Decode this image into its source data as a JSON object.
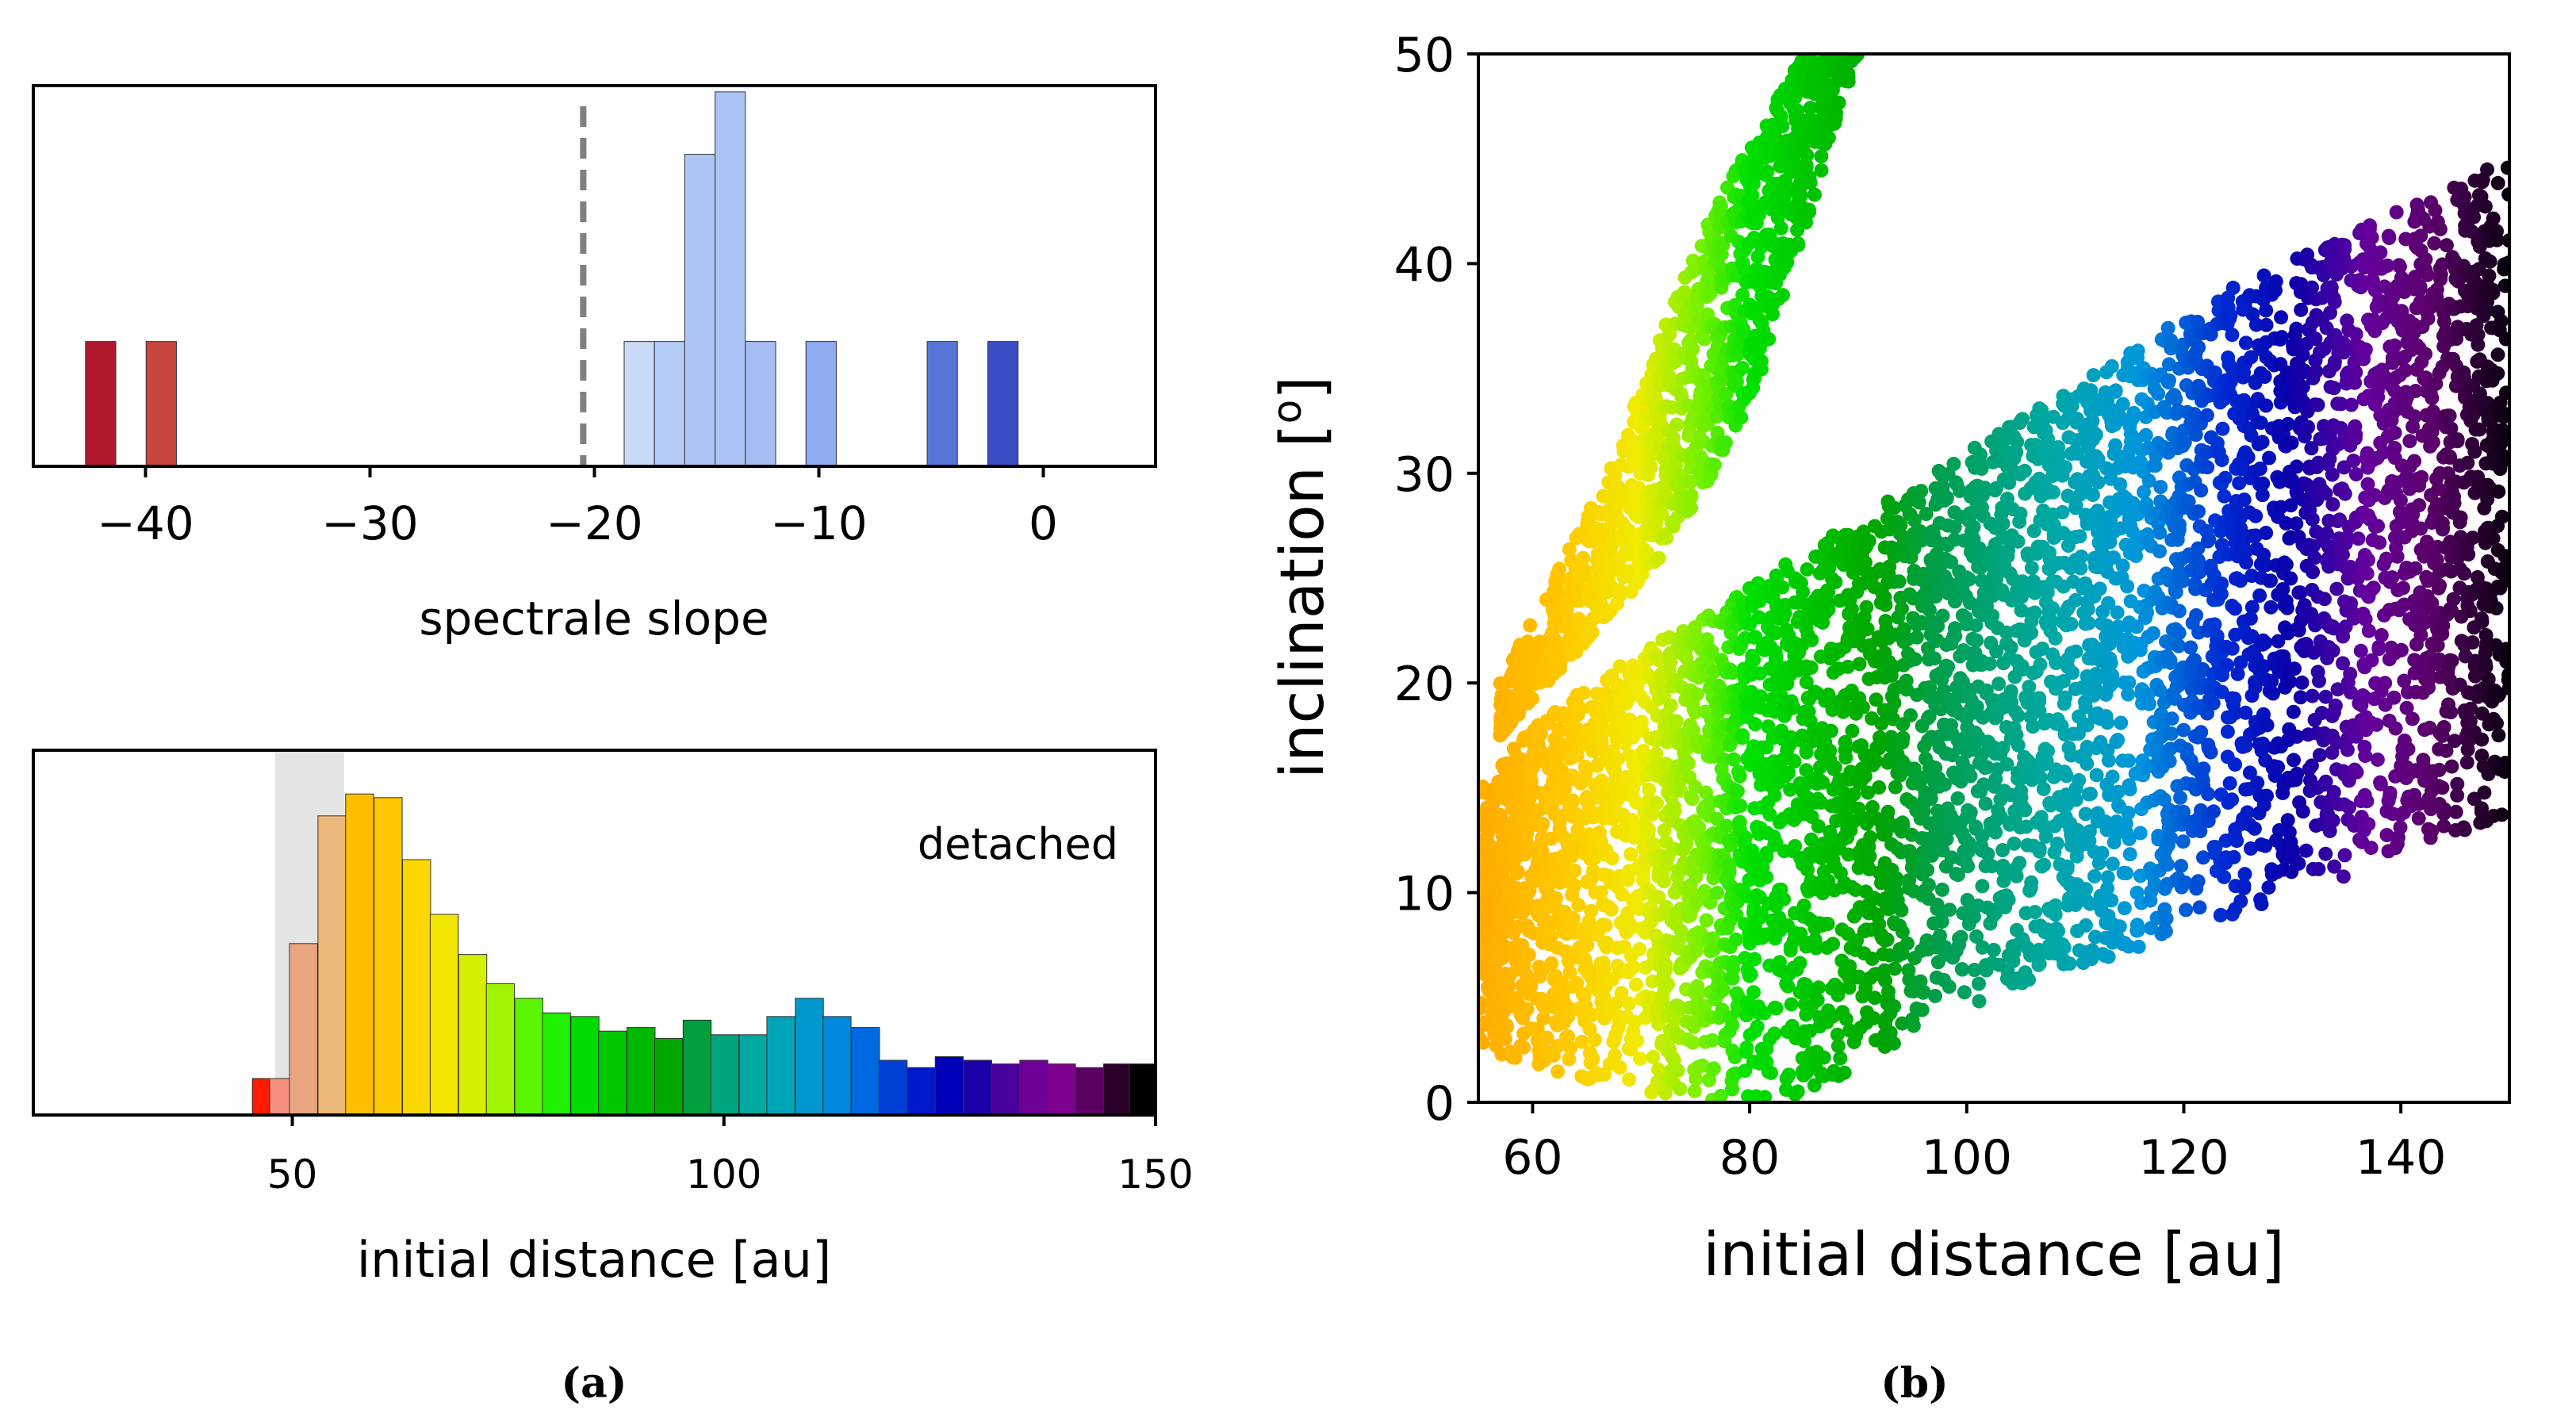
{
  "figure_captions": {
    "a": "(a)",
    "b": "(b)"
  },
  "chart_data": [
    {
      "id": "slope_hist",
      "type": "bar",
      "title": "",
      "xlabel": "spectrale slope",
      "ylabel": "",
      "xlim": [
        -45,
        5
      ],
      "ylim": [
        0,
        6.1
      ],
      "xticks": [
        -40,
        -30,
        -20,
        -10,
        0
      ],
      "xtick_labels": [
        "−40",
        "−30",
        "−20",
        "−10",
        "0"
      ],
      "reference_line": {
        "x": -20.5,
        "style": "dashed",
        "color": "#808080"
      },
      "bin_width": 1.35,
      "bars": [
        {
          "x": -42.0,
          "value": 2,
          "color": "#b2182b"
        },
        {
          "x": -39.3,
          "value": 2,
          "color": "#c94540"
        },
        {
          "x": -18.0,
          "value": 2,
          "color": "#c8d8f6"
        },
        {
          "x": -16.65,
          "value": 2,
          "color": "#b4cbf7"
        },
        {
          "x": -15.3,
          "value": 5,
          "color": "#aec6f6"
        },
        {
          "x": -13.95,
          "value": 6,
          "color": "#abc3f5"
        },
        {
          "x": -12.6,
          "value": 2,
          "color": "#a4bdf3"
        },
        {
          "x": -9.9,
          "value": 2,
          "color": "#8fabf0"
        },
        {
          "x": -4.5,
          "value": 2,
          "color": "#5876d8"
        },
        {
          "x": -1.8,
          "value": 2,
          "color": "#3a4fc4"
        }
      ]
    },
    {
      "id": "distance_hist",
      "type": "bar",
      "title": "",
      "xlabel": "initial distance [au]",
      "ylabel": "",
      "annotation": "detached",
      "xlim": [
        20,
        150
      ],
      "ylim": [
        0,
        1.0
      ],
      "xticks": [
        50,
        100,
        150
      ],
      "xtick_labels": [
        "50",
        "100",
        "150"
      ],
      "shaded_band": {
        "x0": 48,
        "x1": 56,
        "color": "#d9d9d9"
      },
      "bin_width": 3.25,
      "bars": [
        {
          "x": 47.0,
          "value": 0.1,
          "color": "#ff1a00"
        },
        {
          "x": 49.0,
          "value": 0.1,
          "color": "#f48e7e"
        },
        {
          "x": 51.3,
          "value": 0.47,
          "color": "#e8a580"
        },
        {
          "x": 54.6,
          "value": 0.82,
          "color": "#ecb87a"
        },
        {
          "x": 57.8,
          "value": 0.88,
          "color": "#ffbf00"
        },
        {
          "x": 61.1,
          "value": 0.87,
          "color": "#ffc800"
        },
        {
          "x": 64.4,
          "value": 0.7,
          "color": "#ffd700"
        },
        {
          "x": 67.6,
          "value": 0.55,
          "color": "#f2e600"
        },
        {
          "x": 70.9,
          "value": 0.44,
          "color": "#d4f000"
        },
        {
          "x": 74.1,
          "value": 0.36,
          "color": "#9ff500"
        },
        {
          "x": 77.4,
          "value": 0.32,
          "color": "#5cf500"
        },
        {
          "x": 80.6,
          "value": 0.28,
          "color": "#1ef000"
        },
        {
          "x": 83.9,
          "value": 0.27,
          "color": "#00dc00"
        },
        {
          "x": 87.1,
          "value": 0.23,
          "color": "#00c800"
        },
        {
          "x": 90.4,
          "value": 0.24,
          "color": "#00b800"
        },
        {
          "x": 93.6,
          "value": 0.21,
          "color": "#00a800"
        },
        {
          "x": 96.9,
          "value": 0.26,
          "color": "#009f3c"
        },
        {
          "x": 100.1,
          "value": 0.22,
          "color": "#00a47a"
        },
        {
          "x": 103.4,
          "value": 0.22,
          "color": "#00a8a0"
        },
        {
          "x": 106.6,
          "value": 0.27,
          "color": "#00a6b8"
        },
        {
          "x": 109.9,
          "value": 0.32,
          "color": "#0098cc"
        },
        {
          "x": 113.1,
          "value": 0.27,
          "color": "#0088dc"
        },
        {
          "x": 116.4,
          "value": 0.24,
          "color": "#0068e0"
        },
        {
          "x": 119.6,
          "value": 0.15,
          "color": "#0040d6"
        },
        {
          "x": 122.9,
          "value": 0.13,
          "color": "#0018cc"
        },
        {
          "x": 126.1,
          "value": 0.16,
          "color": "#0000b8"
        },
        {
          "x": 129.4,
          "value": 0.15,
          "color": "#1a00a8"
        },
        {
          "x": 132.6,
          "value": 0.14,
          "color": "#4a009c"
        },
        {
          "x": 135.9,
          "value": 0.15,
          "color": "#6c0098"
        },
        {
          "x": 139.1,
          "value": 0.14,
          "color": "#7d0090"
        },
        {
          "x": 142.4,
          "value": 0.13,
          "color": "#5a0062"
        },
        {
          "x": 145.6,
          "value": 0.14,
          "color": "#2a0028"
        },
        {
          "x": 148.6,
          "value": 0.14,
          "color": "#000000"
        }
      ]
    },
    {
      "id": "inclination_scatter",
      "type": "scatter",
      "title": "",
      "xlabel": "initial distance [au]",
      "ylabel": "inclination [o]",
      "ylabel_main": "inclination [",
      "ylabel_sup": "o",
      "ylabel_end": "]",
      "xlim": [
        55,
        150
      ],
      "ylim": [
        0,
        50
      ],
      "xticks": [
        60,
        80,
        100,
        120,
        140
      ],
      "yticks": [
        0,
        10,
        20,
        30,
        40,
        50
      ],
      "xtick_labels": [
        "60",
        "80",
        "100",
        "120",
        "140"
      ],
      "ytick_labels": [
        "0",
        "10",
        "20",
        "30",
        "40",
        "50"
      ],
      "color_by": "initial distance",
      "colormap": "gist_rainbow_r",
      "main_band": {
        "x_range": [
          55,
          150
        ],
        "lower_edge": [
          [
            55,
            2.5
          ],
          [
            72,
            0
          ],
          [
            84,
            0
          ],
          [
            100,
            4.5
          ],
          [
            150,
            13.5
          ]
        ],
        "upper_edge": [
          [
            55,
            15
          ],
          [
            62,
            19
          ],
          [
            75,
            23
          ],
          [
            100,
            31
          ],
          [
            125,
            39
          ],
          [
            150,
            45
          ]
        ]
      },
      "diagonal_band": {
        "lower_edge": [
          [
            57,
            17.5
          ],
          [
            72,
            26
          ],
          [
            80,
            33
          ],
          [
            90,
            50
          ]
        ],
        "upper_edge": [
          [
            57,
            20
          ],
          [
            66,
            29
          ],
          [
            76,
            42
          ],
          [
            85,
            50
          ]
        ]
      }
    }
  ]
}
